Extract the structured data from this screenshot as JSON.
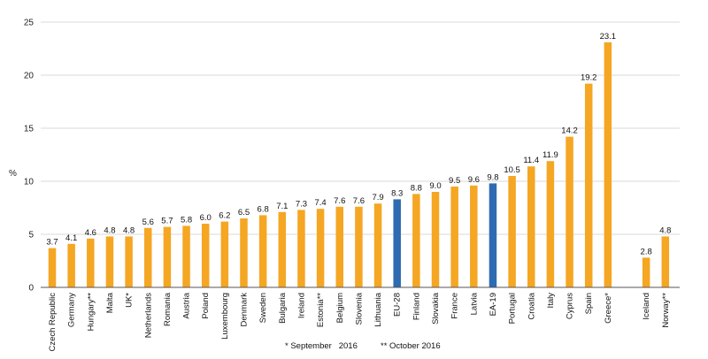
{
  "chart_data": {
    "type": "bar",
    "ylabel": "%",
    "ylim": [
      0,
      25
    ],
    "yticks": [
      0,
      5,
      10,
      15,
      20,
      25
    ],
    "grid": true,
    "colors": {
      "default": "#f5a623",
      "highlight": "#2e6bb0",
      "grid": "#d9d9d9",
      "axis": "#555555"
    },
    "categories": [
      "Czech Republic",
      "Germany",
      "Hungary**",
      "Malta",
      "UK*",
      "Netherlands",
      "Romania",
      "Austria",
      "Poland",
      "Luxembourg",
      "Denmark",
      "Sweden",
      "Bulgaria",
      "Ireland",
      "Estonia**",
      "Belgium",
      "Slovenia",
      "Lithuania",
      "EU-28",
      "Finland",
      "Slovakia",
      "France",
      "Latvia",
      "EA-19",
      "Portugal",
      "Croatia",
      "Italy",
      "Cyprus",
      "Spain",
      "Greece*",
      "Iceland",
      "Norway**"
    ],
    "values": [
      3.7,
      4.1,
      4.6,
      4.8,
      4.8,
      5.6,
      5.7,
      5.8,
      6.0,
      6.2,
      6.5,
      6.8,
      7.1,
      7.3,
      7.4,
      7.6,
      7.6,
      7.9,
      8.3,
      8.8,
      9.0,
      9.5,
      9.6,
      9.8,
      10.5,
      11.4,
      11.9,
      14.2,
      19.2,
      23.1,
      2.8,
      4.8
    ],
    "value_labels": [
      "3.7",
      "4.1",
      "4.6",
      "4.8",
      "4.8",
      "5.6",
      "5.7",
      "5.8",
      "6.0",
      "6.2",
      "6.5",
      "6.8",
      "7.1",
      "7.3",
      "7.4",
      "7.6",
      "7.6",
      "7.9",
      "8.3",
      "8.8",
      "9.0",
      "9.5",
      "9.6",
      "9.8",
      "10.5",
      "11.4",
      "11.9",
      "14.2",
      "19.2",
      "23.1",
      "2.8",
      "4.8"
    ],
    "highlight": [
      "EU-28",
      "EA-19"
    ],
    "gap_before": [
      "Iceland"
    ],
    "footnotes": [
      "* September   2016",
      "** October 2016"
    ]
  }
}
